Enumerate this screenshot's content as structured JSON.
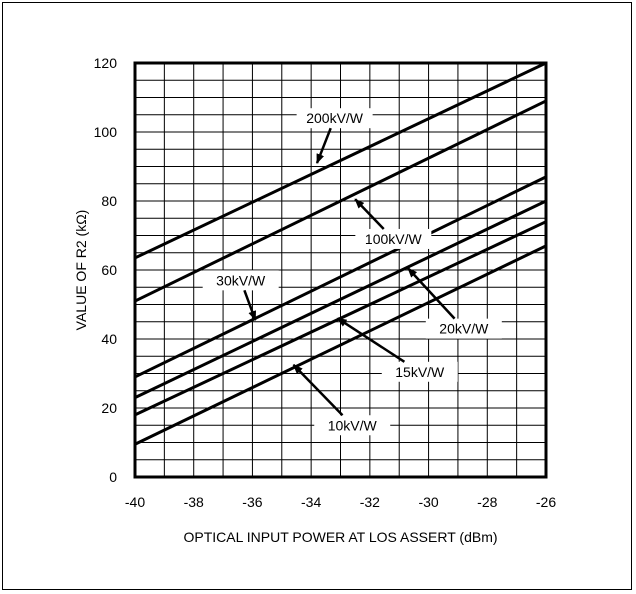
{
  "chart_data": {
    "type": "line",
    "xlabel": "OPTICAL INPUT POWER AT LOS ASSERT (dBm)",
    "ylabel": "VALUE OF R2 (kΩ)",
    "xlim": [
      -40,
      -26
    ],
    "ylim": [
      0,
      120
    ],
    "xticks": [
      -40,
      -38,
      -36,
      -34,
      -32,
      -30,
      -28,
      -26
    ],
    "yticks": [
      0,
      20,
      40,
      60,
      80,
      100,
      120
    ],
    "grid": true,
    "x_minor_step": 1,
    "y_minor_step": 5,
    "series": [
      {
        "name": "200kV/W",
        "x": [
          -40,
          -26
        ],
        "y": [
          63.5,
          120
        ],
        "label": {
          "text": "200kV/W",
          "pos": [
            -33.2,
            104
          ],
          "arrow_to": [
            -33.8,
            91
          ]
        }
      },
      {
        "name": "100kV/W",
        "x": [
          -40,
          -26
        ],
        "y": [
          51,
          109
        ],
        "label": {
          "text": "100kV/W",
          "pos": [
            -31.2,
            69
          ],
          "arrow_to": [
            -32.5,
            80.5
          ]
        }
      },
      {
        "name": "30kV/W",
        "x": [
          -40,
          -26
        ],
        "y": [
          29,
          87
        ],
        "label": {
          "text": "30kV/W",
          "pos": [
            -36.4,
            57
          ],
          "arrow_to": [
            -35.9,
            45.5
          ]
        }
      },
      {
        "name": "20kV/W",
        "x": [
          -40,
          -26
        ],
        "y": [
          23,
          80
        ],
        "label": {
          "text": "20kV/W",
          "pos": [
            -28.8,
            43
          ],
          "arrow_to": [
            -30.7,
            60.5
          ]
        }
      },
      {
        "name": "15kV/W",
        "x": [
          -40,
          -26
        ],
        "y": [
          18,
          74
        ],
        "label": {
          "text": "15kV/W",
          "pos": [
            -30.3,
            30.5
          ],
          "arrow_to": [
            -33.1,
            46
          ]
        }
      },
      {
        "name": "10kV/W",
        "x": [
          -40,
          -26
        ],
        "y": [
          9.5,
          67
        ],
        "label": {
          "text": "10kV/W",
          "pos": [
            -32.6,
            15
          ],
          "arrow_to": [
            -34.6,
            32.5
          ]
        }
      }
    ]
  }
}
